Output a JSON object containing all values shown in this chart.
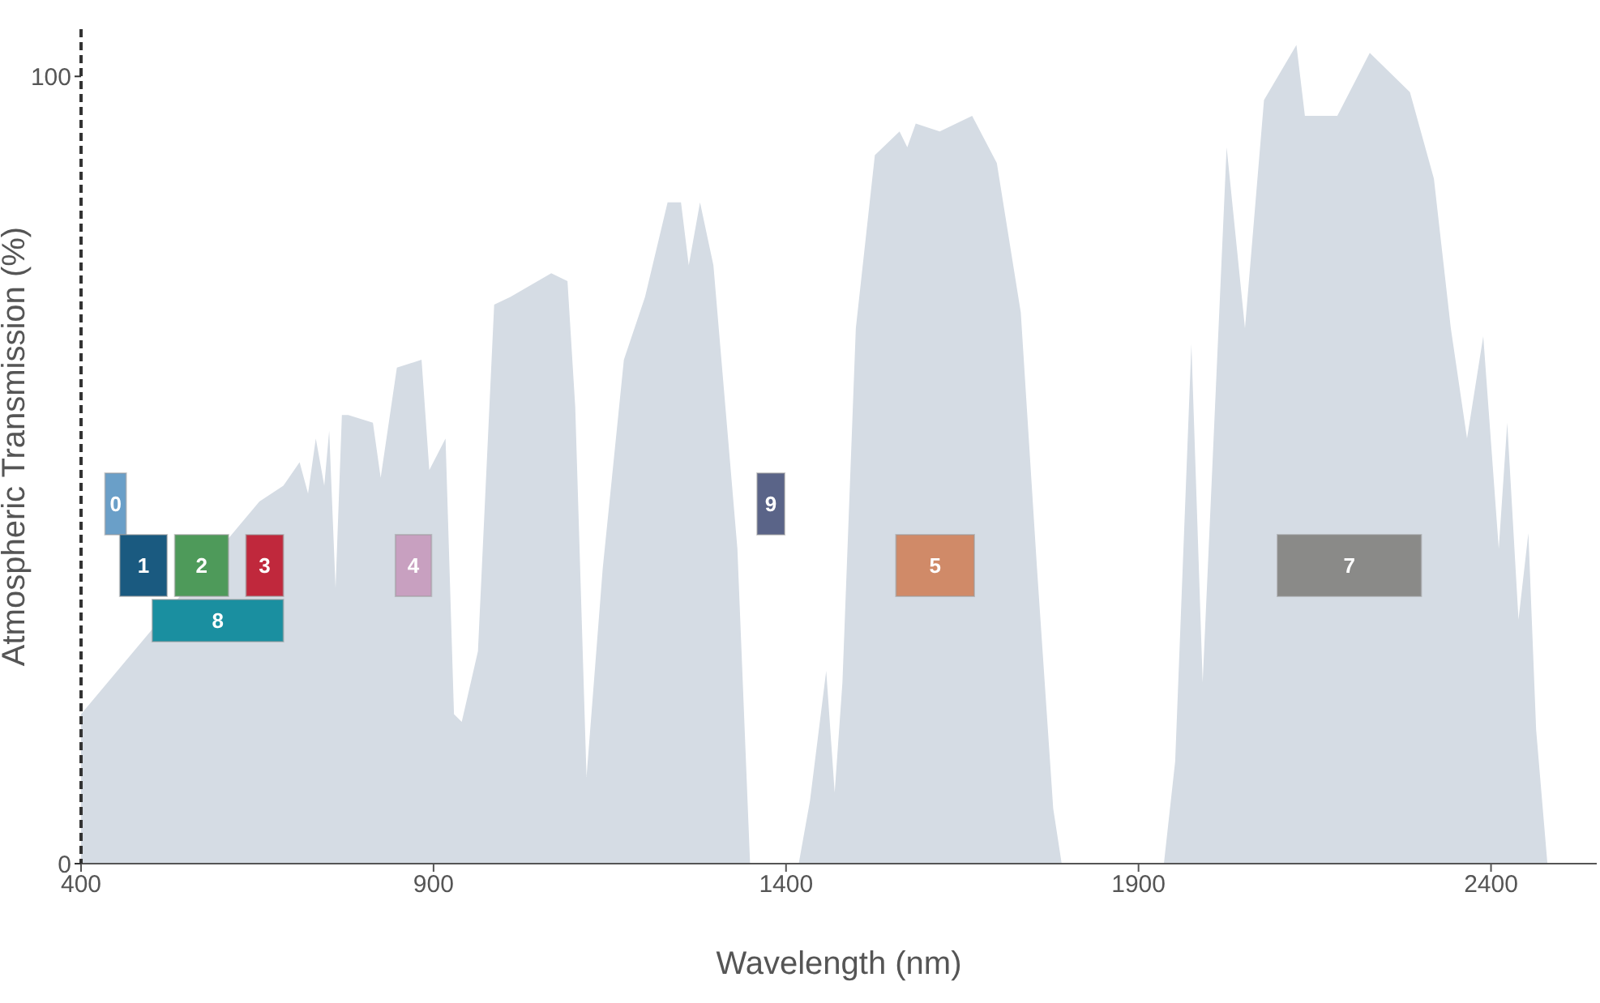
{
  "chart_data": {
    "type": "area",
    "xlabel": "Wavelength (nm)",
    "ylabel": "Atmospheric Transmission (%)",
    "x": [
      400,
      653,
      687,
      710,
      722,
      733,
      745,
      752,
      761,
      770,
      779,
      814,
      825,
      848,
      883,
      894,
      917,
      929,
      940,
      963,
      986,
      1009,
      1067,
      1090,
      1101,
      1117,
      1140,
      1170,
      1200,
      1232,
      1251,
      1262,
      1278,
      1297,
      1331,
      1349,
      1418,
      1434,
      1457,
      1469,
      1480,
      1499,
      1526,
      1561,
      1572,
      1584,
      1618,
      1664,
      1699,
      1733,
      1756,
      1779,
      1791,
      1936,
      1952,
      1975,
      1991,
      2025,
      2051,
      2078,
      2124,
      2136,
      2182,
      2228,
      2285,
      2319,
      2343,
      2366,
      2389,
      2411,
      2423,
      2439,
      2453,
      2464,
      2480
    ],
    "series": [
      {
        "color": "#d5dce4",
        "values": [
          19,
          46,
          48,
          51,
          47,
          54,
          48,
          55,
          35,
          57,
          57,
          56,
          49,
          63,
          64,
          50,
          54,
          19,
          18,
          27,
          71,
          72,
          75,
          74,
          58,
          11,
          37.5,
          64,
          72,
          84,
          84,
          76,
          84,
          76,
          40,
          0,
          0,
          8,
          24.5,
          9,
          23,
          68,
          90,
          93,
          91,
          94,
          93,
          95,
          89,
          70,
          37.5,
          7,
          0,
          0,
          13,
          66,
          23,
          91,
          68,
          97,
          104,
          95,
          95,
          103,
          98,
          87,
          68,
          54,
          67,
          40,
          56,
          31,
          42,
          17,
          0
        ]
      }
    ],
    "xlim": [
      400,
      2550
    ],
    "xticks": [
      400,
      900,
      1400,
      1900,
      2400
    ],
    "ylim": [
      0,
      106
    ],
    "yticks": [
      0,
      100
    ],
    "grid": false,
    "legend": false,
    "marker": "none",
    "bands": [
      {
        "axis": "x",
        "from": 434,
        "to": 464,
        "label": "0",
        "color": "#6a9fc8"
      },
      {
        "axis": "x",
        "from": 455,
        "to": 522,
        "label": "1",
        "color": "#1a5a80"
      },
      {
        "axis": "x",
        "from": 533,
        "to": 609,
        "label": "2",
        "color": "#4e9a5a"
      },
      {
        "axis": "x",
        "from": 634,
        "to": 687,
        "label": "3",
        "color": "#c0283c"
      },
      {
        "axis": "x",
        "from": 846,
        "to": 897,
        "label": "4",
        "color": "#c8a0c0"
      },
      {
        "axis": "x",
        "from": 1556,
        "to": 1667,
        "label": "5",
        "color": "#d08a68"
      },
      {
        "axis": "x",
        "from": 2097,
        "to": 2301,
        "label": "7",
        "color": "#8a8a88"
      },
      {
        "axis": "x",
        "from": 501,
        "to": 687,
        "label": "8",
        "color": "#1a8fa0"
      },
      {
        "axis": "x",
        "from": 1359,
        "to": 1398,
        "label": "9",
        "color": "#5a6488"
      }
    ]
  }
}
